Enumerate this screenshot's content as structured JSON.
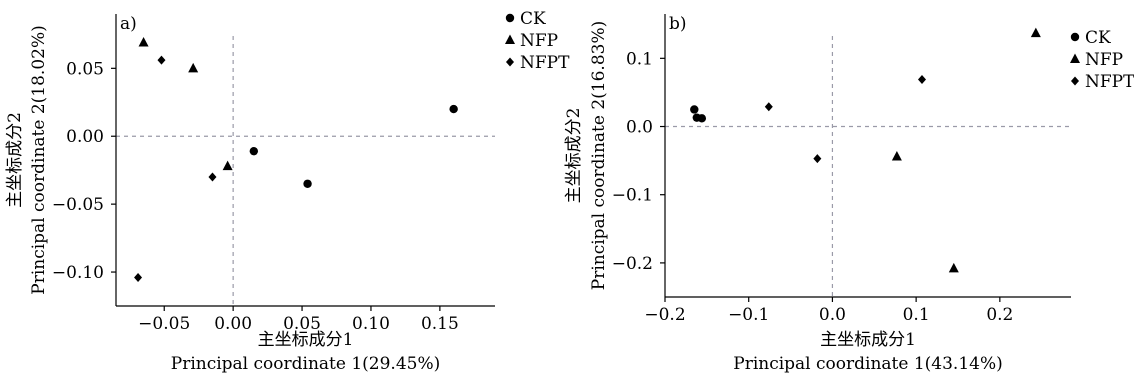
{
  "chart_data": [
    {
      "type": "scatter",
      "panel_label": "a)",
      "xlabel_cn": "主坐标成分1",
      "xlabel": "Principal coordinate 1(29.45%)",
      "ylabel_cn": "主坐标成分2",
      "ylabel": "Principal coordinate 2(18.02%)",
      "xlim": [
        -0.085,
        0.19
      ],
      "ylim": [
        -0.125,
        0.09
      ],
      "xticks": [
        -0.05,
        0.0,
        0.05,
        0.1,
        0.15
      ],
      "xtick_labels": [
        "−0.05",
        "0.00",
        "0.05",
        "0.10",
        "0.15"
      ],
      "yticks": [
        -0.1,
        -0.05,
        0.0,
        0.05
      ],
      "ytick_labels": [
        "−0.10",
        "−0.05",
        "0.00",
        "0.05"
      ],
      "reference_lines": {
        "x": 0,
        "y": 0
      },
      "legend_position": "top-right, outside",
      "series": [
        {
          "name": "CK",
          "marker": "circle",
          "points": [
            [
              0.16,
              0.02
            ],
            [
              0.015,
              -0.011
            ],
            [
              0.054,
              -0.035
            ]
          ]
        },
        {
          "name": "NFP",
          "marker": "triangle",
          "points": [
            [
              -0.065,
              0.069
            ],
            [
              -0.029,
              0.05
            ],
            [
              -0.004,
              -0.022
            ]
          ]
        },
        {
          "name": "NFPT",
          "marker": "diamond",
          "points": [
            [
              -0.052,
              0.056
            ],
            [
              -0.015,
              -0.03
            ],
            [
              -0.069,
              -0.104
            ]
          ]
        }
      ]
    },
    {
      "type": "scatter",
      "panel_label": "b)",
      "xlabel_cn": "主坐标成分1",
      "xlabel": "Principal coordinate 1(43.14%)",
      "ylabel_cn": "主坐标成分2",
      "ylabel": "Principal coordinate 2(16.83%)",
      "xlim": [
        -0.2,
        0.285
      ],
      "ylim": [
        -0.25,
        0.165
      ],
      "xticks": [
        -0.2,
        -0.1,
        0.0,
        0.1,
        0.2
      ],
      "xtick_labels": [
        "−0.2",
        "−0.1",
        "0.0",
        "0.1",
        "0.2"
      ],
      "yticks": [
        -0.2,
        -0.1,
        0.0,
        0.1
      ],
      "ytick_labels": [
        "−0.2",
        "−0.1",
        "0.0",
        "0.1"
      ],
      "reference_lines": {
        "x": 0,
        "y": 0
      },
      "legend_position": "top-right, outside",
      "series": [
        {
          "name": "CK",
          "marker": "circle",
          "points": [
            [
              -0.165,
              0.025
            ],
            [
              -0.162,
              0.013
            ],
            [
              -0.156,
              0.012
            ]
          ]
        },
        {
          "name": "NFP",
          "marker": "triangle",
          "points": [
            [
              0.243,
              0.137
            ],
            [
              0.077,
              -0.044
            ],
            [
              0.145,
              -0.208
            ]
          ]
        },
        {
          "name": "NFPT",
          "marker": "diamond",
          "points": [
            [
              -0.076,
              0.029
            ],
            [
              -0.018,
              -0.047
            ],
            [
              0.107,
              0.069
            ]
          ]
        }
      ]
    }
  ]
}
